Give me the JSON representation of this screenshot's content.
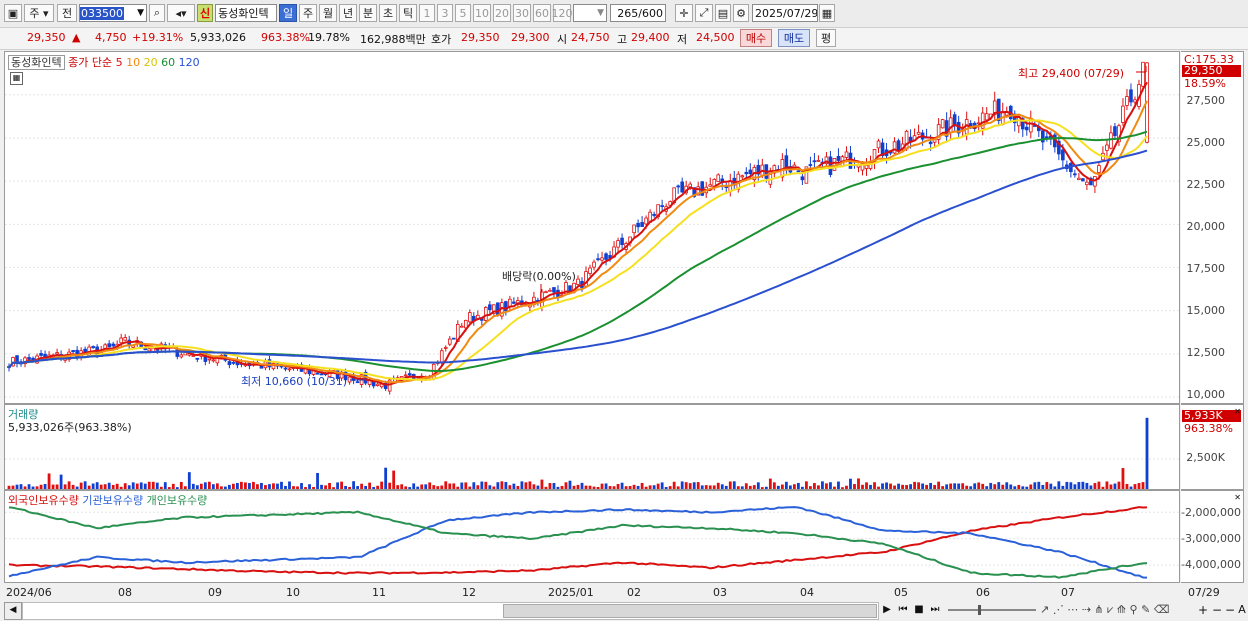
{
  "toolbar": {
    "type_label": "주",
    "market_label": "전",
    "code": "033500",
    "new_badge": "신",
    "stock_name": "동성화인텍",
    "periods": [
      "일",
      "주",
      "월",
      "년",
      "분",
      "초",
      "틱"
    ],
    "selected_period": "일",
    "intervals": [
      "1",
      "3",
      "5",
      "10",
      "20",
      "30",
      "60",
      "120"
    ],
    "count": "265",
    "count_max": "/600",
    "date": "2025/07/29"
  },
  "quote": {
    "price": "29,350",
    "change_arrow": "▲",
    "change": "4,750",
    "change_pct": "+19.31%",
    "volume": "5,933,026",
    "volume_ratio": "963.38%",
    "turnover": "19.78%",
    "amount": "162,988백만",
    "hoga_label": "호가",
    "hoga_ask": "29,350",
    "hoga_bid": "29,300",
    "open_label": "시",
    "open": "24,750",
    "high_label": "고",
    "high": "29,400",
    "low_label": "저",
    "low": "24,500",
    "buy_label": "매수",
    "sell_label": "매도",
    "eval_label": "평"
  },
  "price_panel": {
    "legend_name": "동성화인텍",
    "legend_close": "종가",
    "legend_simple": "단순",
    "ma_periods": [
      "5",
      "10",
      "20",
      "60",
      "120"
    ],
    "ma_colors": [
      "#d81010",
      "#f08a10",
      "#f5e020",
      "#1a9030",
      "#2a50d0"
    ],
    "high_annotation": "최고 29,400 (07/29)",
    "low_annotation": "최저 10,660 (10/31)",
    "dividend_annotation": "배당락(0.00%)",
    "axis_extra": "C:175.33",
    "current_price_tag": "29,350",
    "current_pct_tag": "18.59%",
    "y_ticks": [
      "27,500",
      "25,000",
      "22,500",
      "20,000",
      "17,500",
      "15,000",
      "12,500",
      "10,000"
    ]
  },
  "volume_panel": {
    "title": "거래량",
    "value_text": "5,933,026주(963.38%)",
    "tag_value": "5,933K",
    "tag_pct": "963.38%",
    "y_ticks": [
      "2,500K"
    ]
  },
  "holding_panel": {
    "legend": [
      "외국인보유수량",
      "기관보유수량",
      "개인보유수량"
    ],
    "legend_colors": [
      "#d81010",
      "#2a60d8",
      "#2a9050"
    ],
    "y_ticks": [
      "-2,000,000",
      "-3,000,000",
      "-4,000,000"
    ]
  },
  "x_axis": {
    "labels": [
      "2024/06",
      "08",
      "09",
      "10",
      "11",
      "12",
      "2025/01",
      "02",
      "03",
      "04",
      "05",
      "06",
      "07"
    ],
    "last_date": "07/29"
  },
  "chart_data": {
    "type": "candlestick",
    "title": "동성화인텍",
    "x_range": [
      "2024/06",
      "2025/07/29"
    ],
    "price_series": {
      "name": "종가",
      "dates": [
        "2024/06",
        "2024/07",
        "2024/08",
        "2024/09",
        "2024/10",
        "2024/10/31",
        "2024/11",
        "2024/12",
        "2025/01",
        "2025/02",
        "2025/03",
        "2025/04",
        "2025/05",
        "2025/06",
        "2025/07",
        "2025/07/29"
      ],
      "values": [
        12000,
        12800,
        13200,
        12000,
        11200,
        10660,
        11500,
        14500,
        16500,
        21500,
        23500,
        23000,
        25000,
        26800,
        22000,
        29350
      ]
    },
    "moving_averages": [
      {
        "name": "5",
        "color": "#d81010"
      },
      {
        "name": "10",
        "color": "#f08a10"
      },
      {
        "name": "20",
        "color": "#f5e020"
      },
      {
        "name": "60",
        "color": "#1a9030"
      },
      {
        "name": "120",
        "color": "#2a50d0"
      }
    ],
    "ylim": [
      10000,
      29400
    ],
    "volume": {
      "last": 5933026,
      "tick": 2500000
    },
    "holdings": {
      "series": [
        {
          "name": "외국인보유수량",
          "start": -4000000,
          "end": -1800000
        },
        {
          "name": "기관보유수량",
          "start": -4400000,
          "end": -4500000
        },
        {
          "name": "개인보유수량",
          "start": -1800000,
          "end": -3900000
        }
      ]
    }
  }
}
